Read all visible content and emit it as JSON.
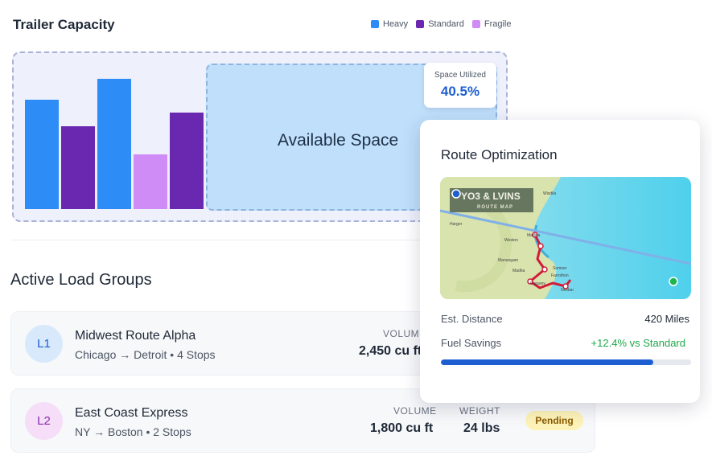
{
  "trailer": {
    "title": "Trailer Capacity",
    "legend": [
      {
        "label": "Heavy",
        "color": "#2d8cf5"
      },
      {
        "label": "Standard",
        "color": "#6a28b0"
      },
      {
        "label": "Fragile",
        "color": "#cf8cf7"
      }
    ],
    "bar_levels": [
      0.74,
      0.56,
      0.88,
      0.37,
      0.65
    ],
    "bar_types": [
      "Heavy",
      "Standard",
      "Heavy",
      "Fragile",
      "Standard"
    ],
    "available_label": "Available Space",
    "utilized_label": "Space Utilized",
    "utilized_value": "40.5%"
  },
  "loads": {
    "title": "Active Load Groups",
    "items": [
      {
        "badge": "L1",
        "name": "Midwest Route Alpha",
        "route": "Chicago → Detroit",
        "stops": "4 Stops",
        "volume_label": "VOLUME",
        "volume": "2,450 cu ft",
        "weight_label": "",
        "weight": "",
        "status": ""
      },
      {
        "badge": "L2",
        "name": "East Coast Express",
        "route": "NY → Boston",
        "stops": "2 Stops",
        "volume_label": "VOLUME",
        "volume": "1,800 cu ft",
        "weight_label": "WEIGHT",
        "weight": "24 lbs",
        "status": "Pending"
      }
    ]
  },
  "route": {
    "title": "Route Optimization",
    "map_title": "YO3 & LVINS",
    "map_subtitle": "ROUTE MAP",
    "map_places": [
      "Wisdila",
      "Harger",
      "Madina",
      "Weston",
      "Manungam",
      "Madha",
      "Somner",
      "Cuparey",
      "Farrothon",
      "Nexbar"
    ],
    "distance_label": "Est. Distance",
    "distance_value": "420 Miles",
    "fuel_label": "Fuel Savings",
    "fuel_value": "+12.4% vs Standard",
    "fuel_color": "#1fa84a",
    "progress_fraction": 0.85
  }
}
